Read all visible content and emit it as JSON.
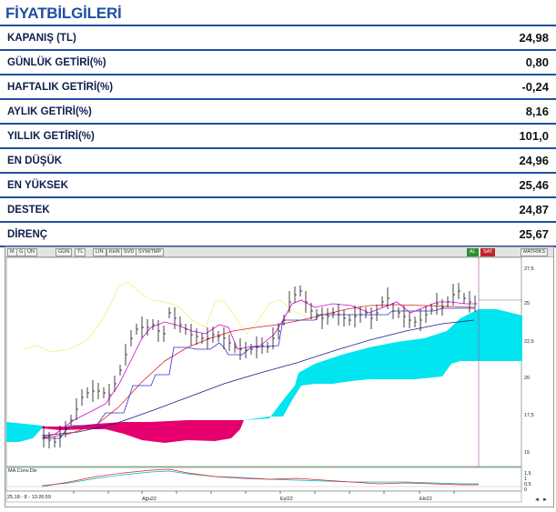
{
  "header": {
    "title": "FİYATBİLGİLERİ"
  },
  "rows": [
    {
      "label": "KAPANIŞ  (TL)",
      "value": "24,98"
    },
    {
      "label": "GÜNLÜK GETİRİ(%)",
      "value": "0,80"
    },
    {
      "label": "HAFTALIK GETİRİ(%)",
      "value": "-0,24"
    },
    {
      "label": "AYLIK GETİRİ(%)",
      "value": "8,16"
    },
    {
      "label": "YILLIK  GETİRİ(%)",
      "value": "101,0"
    },
    {
      "label": "EN DÜŞÜK",
      "value": "24,96"
    },
    {
      "label": "EN YÜKSEK",
      "value": "25,46"
    },
    {
      "label": "DESTEK",
      "value": "24,87"
    },
    {
      "label": "DİRENÇ",
      "value": "25,67"
    }
  ],
  "chart": {
    "toolbar": {
      "tools": [
        "M",
        "G",
        "ÜN",
        "GÜN",
        "TL",
        "LIN",
        "KHN",
        "SVD",
        "SYM/TMP"
      ],
      "al": "AL",
      "sat": "SAT",
      "matriks": "MATRİKS"
    },
    "y_ticks": [
      "27,5",
      "25",
      "22,5",
      "20",
      "17,5",
      "15"
    ],
    "osc_ticks": [
      "1,5",
      "1",
      "0,5",
      "0"
    ],
    "x_ticks": [
      "Ağu22",
      "Eyl22",
      "Eki22"
    ],
    "osc_label": "MA.Conv.Div",
    "status": "25,18 - 8 - 13:26:59",
    "colors": {
      "cloud_bull": "#00e5f0",
      "cloud_bear": "#e6006e",
      "bars": "#111111",
      "tenkan": "#d400d4",
      "kijun": "#2020c0",
      "ma_slow": "#1a1a8c",
      "ma_fast": "#e02020",
      "chikou": "#f2f28a"
    }
  }
}
